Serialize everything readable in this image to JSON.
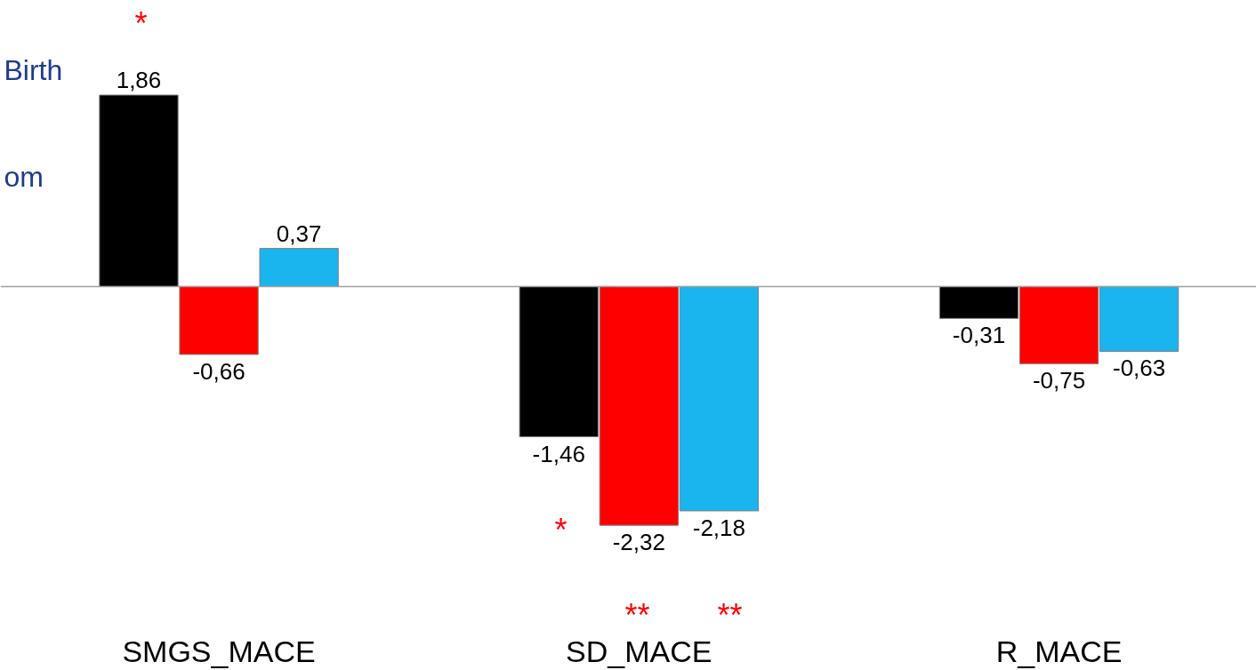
{
  "chart_data": {
    "type": "bar",
    "categories": [
      "SMGS_MACE",
      "SD_MACE",
      "R_MACE"
    ],
    "series": [
      {
        "color": "#000000",
        "values": [
          1.86,
          -1.46,
          -0.31
        ],
        "value_labels": [
          "1,86",
          "-1,46",
          "-0,31"
        ]
      },
      {
        "color": "#ff0000",
        "values": [
          -0.66,
          -2.32,
          -0.75
        ],
        "value_labels": [
          "-0,66",
          "-2,32",
          "-0,75"
        ]
      },
      {
        "color": "#1ab4ef",
        "values": [
          0.37,
          -2.18,
          -0.63
        ],
        "value_labels": [
          "0,37",
          "-2,18",
          "-0,63"
        ]
      }
    ],
    "annotations": [
      "Birth",
      "om",
      "*",
      "*",
      "**",
      "**"
    ]
  }
}
